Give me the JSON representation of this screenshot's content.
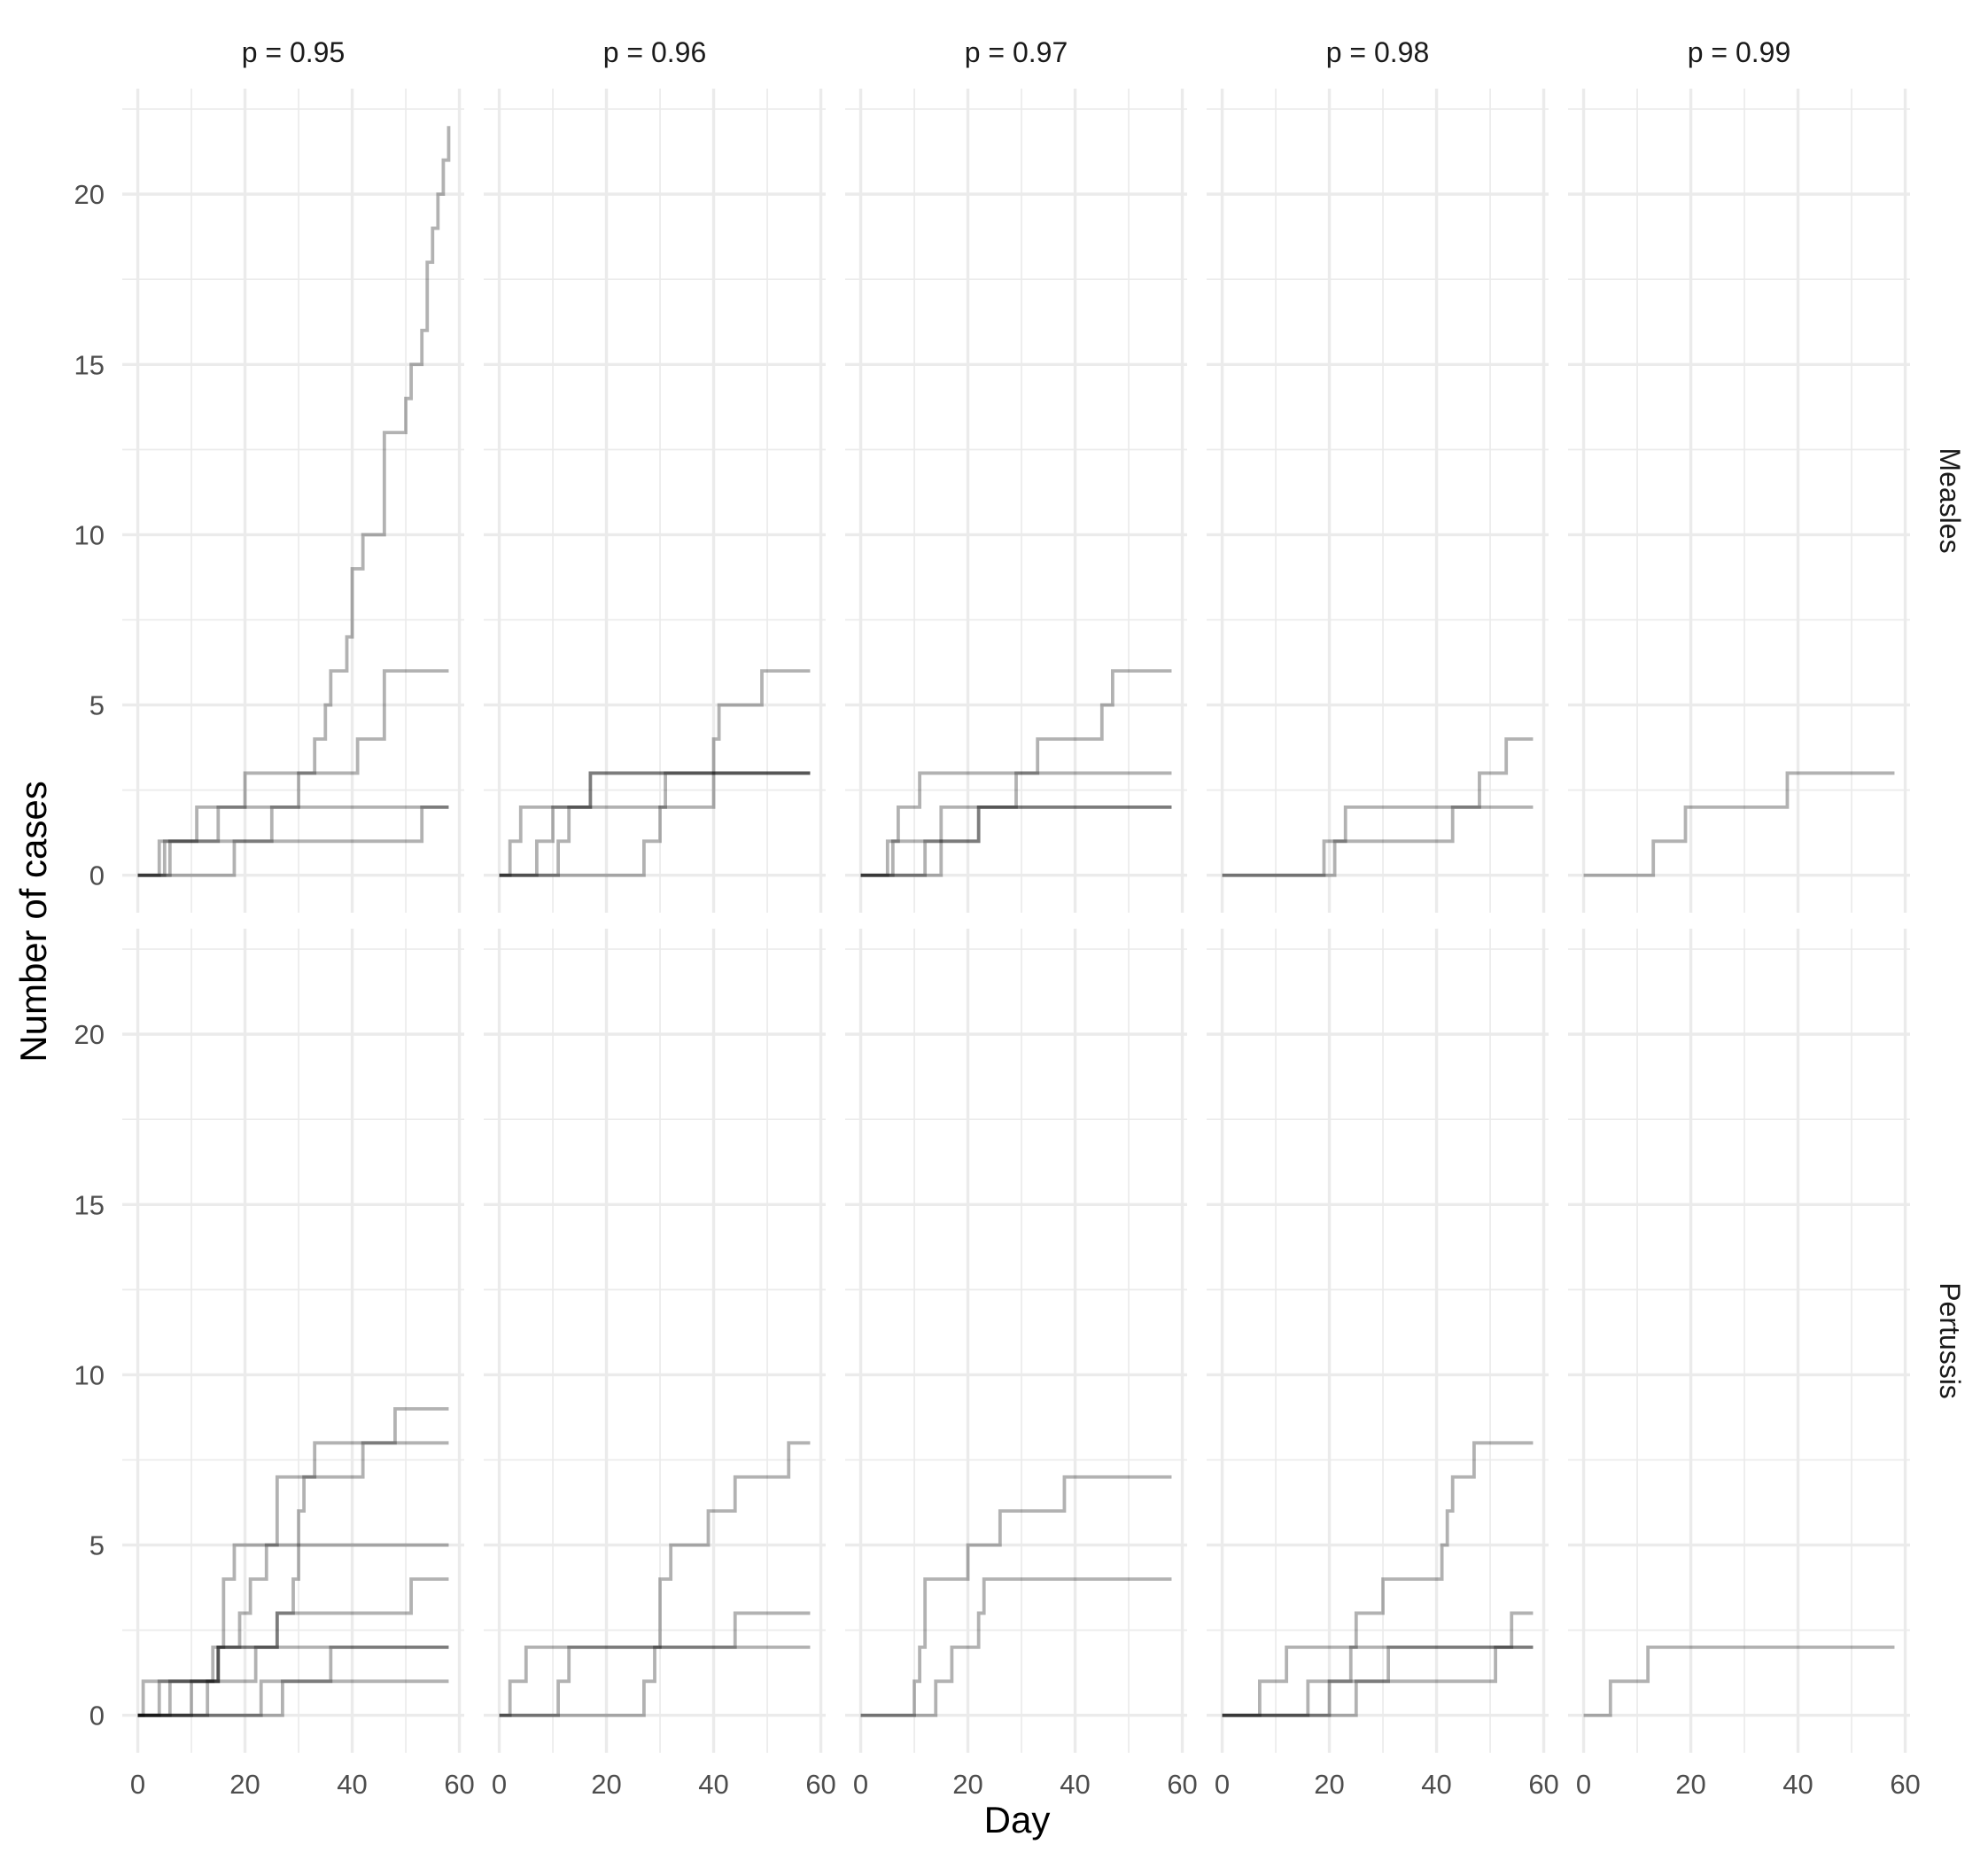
{
  "chart_data": {
    "type": "line",
    "xlabel": "Day",
    "ylabel": "Number of cases",
    "xlim": [
      0,
      60
    ],
    "ylim": [
      0,
      22
    ],
    "x_ticks": [
      0,
      20,
      40,
      60
    ],
    "y_ticks": [
      0,
      5,
      10,
      15,
      20
    ],
    "grid": true,
    "columns": [
      "p = 0.95",
      "p = 0.96",
      "p = 0.97",
      "p = 0.98",
      "p = 0.99"
    ],
    "rows": [
      "Measles",
      "Pertussis"
    ],
    "line_color": "#000000",
    "line_opacity": 0.3,
    "panels": [
      {
        "row": "Measles",
        "column": "p = 0.95",
        "series": [
          {
            "steps": [
              [
                0,
                0
              ],
              [
                5,
                1
              ],
              [
                53,
                2
              ],
              [
                58,
                2
              ]
            ]
          },
          {
            "steps": [
              [
                0,
                0
              ],
              [
                6,
                1
              ],
              [
                15,
                2
              ],
              [
                20,
                3
              ],
              [
                31,
                3
              ],
              [
                33,
                4
              ],
              [
                35,
                5
              ],
              [
                36,
                6
              ],
              [
                39,
                7
              ],
              [
                40,
                9
              ],
              [
                42,
                10
              ],
              [
                46,
                13
              ],
              [
                50,
                14
              ],
              [
                51,
                15
              ],
              [
                53,
                16
              ],
              [
                54,
                18
              ],
              [
                55,
                19
              ],
              [
                56,
                20
              ],
              [
                57,
                21
              ],
              [
                58,
                22
              ]
            ]
          },
          {
            "steps": [
              [
                0,
                0
              ],
              [
                4,
                1
              ],
              [
                10,
                1
              ],
              [
                11,
                2
              ],
              [
                20,
                2
              ],
              [
                30,
                3
              ],
              [
                41,
                4
              ],
              [
                46,
                6
              ],
              [
                58,
                6
              ]
            ]
          },
          {
            "steps": [
              [
                0,
                0
              ],
              [
                18,
                1
              ],
              [
                25,
                2
              ],
              [
                58,
                2
              ]
            ]
          }
        ]
      },
      {
        "row": "Measles",
        "column": "p = 0.96",
        "series": [
          {
            "steps": [
              [
                0,
                0
              ],
              [
                2,
                1
              ],
              [
                4,
                2
              ],
              [
                17,
                3
              ],
              [
                58,
                3
              ]
            ]
          },
          {
            "steps": [
              [
                0,
                0
              ],
              [
                7,
                1
              ],
              [
                10,
                2
              ],
              [
                17,
                3
              ],
              [
                40,
                4
              ],
              [
                41,
                5
              ],
              [
                49,
                6
              ],
              [
                58,
                6
              ]
            ]
          },
          {
            "steps": [
              [
                0,
                0
              ],
              [
                11,
                1
              ],
              [
                13,
                2
              ],
              [
                31,
                3
              ],
              [
                58,
                3
              ]
            ]
          },
          {
            "steps": [
              [
                0,
                0
              ],
              [
                27,
                1
              ],
              [
                30,
                2
              ],
              [
                40,
                3
              ],
              [
                58,
                3
              ]
            ]
          }
        ]
      },
      {
        "row": "Measles",
        "column": "p = 0.97",
        "series": [
          {
            "steps": [
              [
                0,
                0
              ],
              [
                5,
                1
              ],
              [
                7,
                2
              ],
              [
                11,
                3
              ],
              [
                58,
                3
              ]
            ]
          },
          {
            "steps": [
              [
                0,
                0
              ],
              [
                6,
                1
              ],
              [
                12,
                1
              ],
              [
                15,
                2
              ],
              [
                36,
                2
              ],
              [
                36,
                2
              ],
              [
                58,
                2
              ]
            ]
          },
          {
            "steps": [
              [
                0,
                0
              ],
              [
                12,
                1
              ],
              [
                22,
                2
              ],
              [
                29,
                3
              ],
              [
                33,
                4
              ],
              [
                45,
                5
              ],
              [
                47,
                6
              ],
              [
                58,
                6
              ]
            ]
          },
          {
            "steps": [
              [
                0,
                0
              ],
              [
                15,
                1
              ],
              [
                22,
                2
              ],
              [
                58,
                2
              ]
            ]
          }
        ]
      },
      {
        "row": "Measles",
        "column": "p = 0.98",
        "series": [
          {
            "steps": [
              [
                0,
                0
              ],
              [
                19,
                1
              ],
              [
                23,
                2
              ],
              [
                48,
                3
              ],
              [
                53,
                4
              ],
              [
                58,
                4
              ]
            ]
          },
          {
            "steps": [
              [
                0,
                0
              ],
              [
                21,
                1
              ],
              [
                43,
                2
              ],
              [
                58,
                2
              ]
            ]
          }
        ]
      },
      {
        "row": "Measles",
        "column": "p = 0.99",
        "series": [
          {
            "steps": [
              [
                0,
                0
              ],
              [
                13,
                1
              ],
              [
                19,
                2
              ],
              [
                38,
                3
              ],
              [
                58,
                3
              ]
            ]
          }
        ]
      },
      {
        "row": "Pertussis",
        "column": "p = 0.95",
        "series": [
          {
            "steps": [
              [
                0,
                0
              ],
              [
                1,
                1
              ],
              [
                15,
                2
              ],
              [
                58,
                2
              ]
            ]
          },
          {
            "steps": [
              [
                0,
                0
              ],
              [
                4,
                1
              ],
              [
                15,
                2
              ],
              [
                16,
                4
              ],
              [
                18,
                5
              ],
              [
                26,
                7
              ],
              [
                33,
                8
              ],
              [
                48,
                9
              ],
              [
                58,
                9
              ]
            ]
          },
          {
            "steps": [
              [
                0,
                0
              ],
              [
                6,
                1
              ],
              [
                14,
                2
              ],
              [
                19,
                3
              ],
              [
                21,
                4
              ],
              [
                24,
                5
              ],
              [
                58,
                5
              ]
            ]
          },
          {
            "steps": [
              [
                0,
                0
              ],
              [
                10,
                1
              ],
              [
                15,
                2
              ],
              [
                19,
                2
              ],
              [
                26,
                3
              ],
              [
                29,
                4
              ],
              [
                30,
                6
              ],
              [
                31,
                7
              ],
              [
                42,
                8
              ],
              [
                58,
                8
              ]
            ]
          },
          {
            "steps": [
              [
                0,
                0
              ],
              [
                13,
                1
              ],
              [
                22,
                2
              ],
              [
                26,
                3
              ],
              [
                51,
                4
              ],
              [
                58,
                4
              ]
            ]
          },
          {
            "steps": [
              [
                0,
                0
              ],
              [
                22,
                0
              ],
              [
                23,
                1
              ],
              [
                27,
                1
              ],
              [
                36,
                2
              ],
              [
                58,
                2
              ]
            ]
          },
          {
            "steps": [
              [
                0,
                0
              ],
              [
                27,
                1
              ],
              [
                58,
                1
              ]
            ]
          }
        ]
      },
      {
        "row": "Pertussis",
        "column": "p = 0.96",
        "series": [
          {
            "steps": [
              [
                0,
                0
              ],
              [
                2,
                1
              ],
              [
                5,
                2
              ],
              [
                58,
                2
              ]
            ]
          },
          {
            "steps": [
              [
                0,
                0
              ],
              [
                11,
                1
              ],
              [
                13,
                2
              ],
              [
                30,
                4
              ],
              [
                32,
                5
              ],
              [
                39,
                6
              ],
              [
                44,
                7
              ],
              [
                54,
                8
              ],
              [
                58,
                8
              ]
            ]
          },
          {
            "steps": [
              [
                0,
                0
              ],
              [
                27,
                1
              ],
              [
                29,
                2
              ],
              [
                44,
                3
              ],
              [
                58,
                3
              ]
            ]
          }
        ]
      },
      {
        "row": "Pertussis",
        "column": "p = 0.97",
        "series": [
          {
            "steps": [
              [
                0,
                0
              ],
              [
                10,
                1
              ],
              [
                11,
                2
              ],
              [
                12,
                4
              ],
              [
                20,
                5
              ],
              [
                26,
                6
              ],
              [
                38,
                7
              ],
              [
                58,
                7
              ]
            ]
          },
          {
            "steps": [
              [
                0,
                0
              ],
              [
                14,
                1
              ],
              [
                17,
                2
              ],
              [
                22,
                3
              ],
              [
                23,
                4
              ],
              [
                58,
                4
              ]
            ]
          }
        ]
      },
      {
        "row": "Pertussis",
        "column": "p = 0.98",
        "series": [
          {
            "steps": [
              [
                0,
                0
              ],
              [
                7,
                1
              ],
              [
                12,
                2
              ],
              [
                25,
                3
              ],
              [
                30,
                4
              ],
              [
                41,
                5
              ],
              [
                42,
                6
              ],
              [
                43,
                7
              ],
              [
                47,
                8
              ],
              [
                58,
                8
              ]
            ]
          },
          {
            "steps": [
              [
                0,
                0
              ],
              [
                16,
                1
              ],
              [
                24,
                2
              ],
              [
                58,
                2
              ]
            ]
          },
          {
            "steps": [
              [
                0,
                0
              ],
              [
                20,
                1
              ],
              [
                31,
                2
              ],
              [
                54,
                3
              ],
              [
                58,
                3
              ]
            ]
          },
          {
            "steps": [
              [
                0,
                0
              ],
              [
                25,
                1
              ],
              [
                51,
                2
              ],
              [
                58,
                2
              ]
            ]
          }
        ]
      },
      {
        "row": "Pertussis",
        "column": "p = 0.99",
        "series": [
          {
            "steps": [
              [
                0,
                0
              ],
              [
                5,
                1
              ],
              [
                12,
                2
              ],
              [
                58,
                2
              ]
            ]
          }
        ]
      }
    ]
  }
}
